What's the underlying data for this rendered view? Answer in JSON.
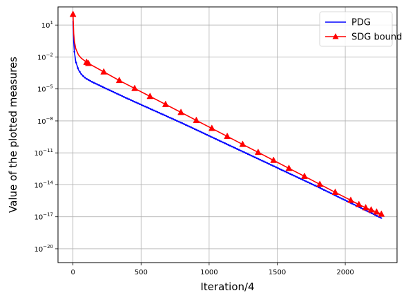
{
  "chart_data": {
    "type": "line",
    "xlabel": "Iteration/4",
    "ylabel": "Value of the plotted measures",
    "xlim": [
      -110,
      2380
    ],
    "ylim_log10": [
      -21.3,
      2.7
    ],
    "y_scale": "log",
    "grid": true,
    "legend_position": "top-right",
    "x_ticks": [
      0,
      500,
      1000,
      1500,
      2000
    ],
    "y_ticks": [
      {
        "base": "10",
        "exp": "1",
        "value": 1
      },
      {
        "base": "10",
        "exp": "−2",
        "value": -2
      },
      {
        "base": "10",
        "exp": "−5",
        "value": -5
      },
      {
        "base": "10",
        "exp": "−8",
        "value": -8
      },
      {
        "base": "10",
        "exp": "−11",
        "value": -11
      },
      {
        "base": "10",
        "exp": "−14",
        "value": -14
      },
      {
        "base": "10",
        "exp": "−17",
        "value": -17
      },
      {
        "base": "10",
        "exp": "−20",
        "value": -20
      }
    ],
    "series": [
      {
        "name": "PDG",
        "color": "#0000ff",
        "marker": "dot",
        "x": [
          0,
          5,
          10,
          20,
          40,
          60,
          80,
          100,
          150,
          200,
          300,
          400,
          600,
          800,
          1000,
          1200,
          1400,
          1600,
          1800,
          2000,
          2200,
          2270
        ],
        "log10_y": [
          1.4,
          -0.5,
          -1.5,
          -2.4,
          -3.2,
          -3.6,
          -3.85,
          -4.05,
          -4.4,
          -4.7,
          -5.3,
          -5.9,
          -7.05,
          -8.2,
          -9.4,
          -10.6,
          -11.8,
          -13.0,
          -14.2,
          -15.45,
          -16.7,
          -17.15
        ]
      },
      {
        "name": "SDG bound",
        "color": "#ff0000",
        "marker": "triangle",
        "x": [
          0,
          5,
          10,
          20,
          40,
          60,
          80,
          100,
          113,
          226,
          340,
          453,
          566,
          680,
          793,
          906,
          1020,
          1133,
          1246,
          1360,
          1473,
          1586,
          1700,
          1813,
          1926,
          2040,
          2100,
          2150,
          2190,
          2230,
          2265
        ],
        "log10_y": [
          2.0,
          0.2,
          -0.5,
          -1.2,
          -1.8,
          -2.1,
          -2.3,
          -2.5,
          -2.6,
          -3.4,
          -4.2,
          -4.95,
          -5.7,
          -6.45,
          -7.2,
          -7.95,
          -8.7,
          -9.45,
          -10.2,
          -10.95,
          -11.7,
          -12.45,
          -13.2,
          -13.95,
          -14.7,
          -15.45,
          -15.85,
          -16.15,
          -16.35,
          -16.55,
          -16.75
        ]
      }
    ]
  }
}
